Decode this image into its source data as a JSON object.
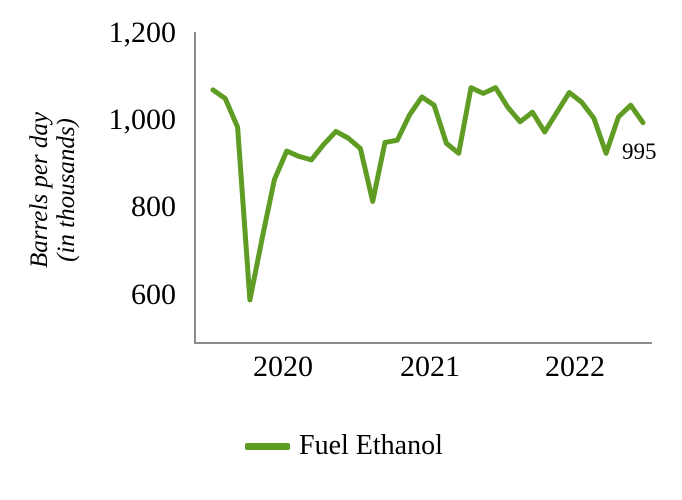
{
  "figure": {
    "y_axis": {
      "title_line1": "Barrels per day",
      "title_line2": "(in thousands)",
      "ticks": [
        "1,200",
        "1,000",
        "800",
        "600"
      ]
    },
    "x_axis": {
      "ticks": [
        "2020",
        "2021",
        "2022"
      ]
    },
    "end_label": "995",
    "legend": {
      "label": "Fuel Ethanol"
    },
    "colors": {
      "line": "#5f9c23",
      "axis": "#8c8c8c"
    }
  },
  "chart_data": {
    "type": "line",
    "title": "",
    "ylabel": "Barrels per day (in thousands)",
    "xlabel": "",
    "grid": false,
    "legend_position": "bottom",
    "ylim": [
      490,
      1200
    ],
    "yticks": [
      600,
      800,
      1000,
      1200
    ],
    "xticks": [
      "2020",
      "2021",
      "2022"
    ],
    "x": [
      "2020-01",
      "2020-02",
      "2020-03",
      "2020-04",
      "2020-05",
      "2020-06",
      "2020-07",
      "2020-08",
      "2020-09",
      "2020-10",
      "2020-11",
      "2020-12",
      "2021-01",
      "2021-02",
      "2021-03",
      "2021-04",
      "2021-05",
      "2021-06",
      "2021-07",
      "2021-08",
      "2021-09",
      "2021-10",
      "2021-11",
      "2021-12",
      "2022-01",
      "2022-02",
      "2022-03",
      "2022-04",
      "2022-05",
      "2022-06",
      "2022-07",
      "2022-08",
      "2022-09",
      "2022-10",
      "2022-11",
      "2022-12"
    ],
    "series": [
      {
        "name": "Fuel Ethanol",
        "color": "#5f9c23",
        "values": [
          1070,
          1050,
          985,
          590,
          730,
          865,
          930,
          918,
          910,
          945,
          975,
          960,
          936,
          815,
          950,
          955,
          1013,
          1054,
          1035,
          948,
          925,
          1075,
          1062,
          1075,
          1030,
          997,
          1019,
          974,
          1019,
          1064,
          1042,
          1005,
          925,
          1008,
          1035,
          995
        ]
      }
    ],
    "annotations": [
      {
        "x": "2022-12",
        "text": "995"
      }
    ]
  }
}
